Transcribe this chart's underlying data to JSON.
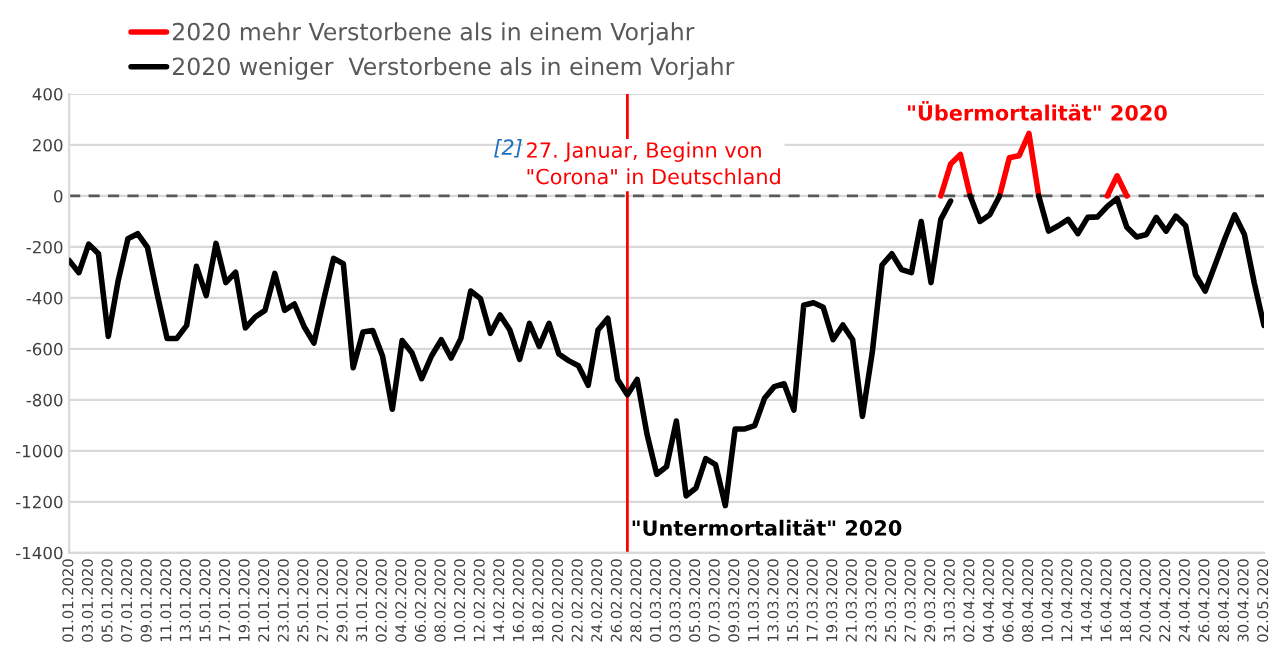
{
  "chart_data": {
    "type": "line",
    "x": [
      "2020-01-01",
      "2020-01-02",
      "2020-01-03",
      "2020-01-04",
      "2020-01-05",
      "2020-01-06",
      "2020-01-07",
      "2020-01-08",
      "2020-01-09",
      "2020-01-10",
      "2020-01-11",
      "2020-01-12",
      "2020-01-13",
      "2020-01-14",
      "2020-01-15",
      "2020-01-16",
      "2020-01-17",
      "2020-01-18",
      "2020-01-19",
      "2020-01-20",
      "2020-01-21",
      "2020-01-22",
      "2020-01-23",
      "2020-01-24",
      "2020-01-25",
      "2020-01-26",
      "2020-01-27",
      "2020-01-28",
      "2020-01-29",
      "2020-01-30",
      "2020-01-31",
      "2020-02-01",
      "2020-02-02",
      "2020-02-03",
      "2020-02-04",
      "2020-02-05",
      "2020-02-06",
      "2020-02-07",
      "2020-02-08",
      "2020-02-09",
      "2020-02-10",
      "2020-02-11",
      "2020-02-12",
      "2020-02-13",
      "2020-02-14",
      "2020-02-15",
      "2020-02-16",
      "2020-02-17",
      "2020-02-18",
      "2020-02-19",
      "2020-02-20",
      "2020-02-21",
      "2020-02-22",
      "2020-02-23",
      "2020-02-24",
      "2020-02-25",
      "2020-02-26",
      "2020-02-27",
      "2020-02-28",
      "2020-02-29",
      "2020-03-01",
      "2020-03-02",
      "2020-03-03",
      "2020-03-04",
      "2020-03-05",
      "2020-03-06",
      "2020-03-07",
      "2020-03-08",
      "2020-03-09",
      "2020-03-10",
      "2020-03-11",
      "2020-03-12",
      "2020-03-13",
      "2020-03-14",
      "2020-03-15",
      "2020-03-16",
      "2020-03-17",
      "2020-03-18",
      "2020-03-19",
      "2020-03-20",
      "2020-03-21",
      "2020-03-22",
      "2020-03-23",
      "2020-03-24",
      "2020-03-25",
      "2020-03-26",
      "2020-03-27",
      "2020-03-28",
      "2020-03-29",
      "2020-03-30",
      "2020-03-31",
      "2020-04-01",
      "2020-04-02",
      "2020-04-03",
      "2020-04-04",
      "2020-04-05",
      "2020-04-06",
      "2020-04-07",
      "2020-04-08",
      "2020-04-09",
      "2020-04-10",
      "2020-04-11",
      "2020-04-12",
      "2020-04-13",
      "2020-04-14",
      "2020-04-15",
      "2020-04-16",
      "2020-04-17",
      "2020-04-18",
      "2020-04-19",
      "2020-04-20",
      "2020-04-21",
      "2020-04-22",
      "2020-04-23",
      "2020-04-24",
      "2020-04-25",
      "2020-04-26",
      "2020-04-27",
      "2020-04-28",
      "2020-04-29",
      "2020-04-30",
      "2020-05-01",
      "2020-05-02"
    ],
    "series": [
      {
        "name": "2020 mehr Verstorbene als in einem Vorjahr",
        "color": "#ff0000",
        "values": [
          null,
          null,
          null,
          null,
          null,
          null,
          null,
          null,
          null,
          null,
          null,
          null,
          null,
          null,
          null,
          null,
          null,
          null,
          null,
          null,
          null,
          null,
          null,
          null,
          null,
          null,
          null,
          null,
          null,
          null,
          null,
          null,
          null,
          null,
          null,
          null,
          null,
          null,
          null,
          null,
          null,
          null,
          null,
          null,
          null,
          null,
          null,
          null,
          null,
          null,
          null,
          null,
          null,
          null,
          null,
          null,
          null,
          null,
          null,
          null,
          null,
          null,
          null,
          null,
          null,
          null,
          null,
          null,
          null,
          null,
          null,
          null,
          null,
          null,
          null,
          null,
          null,
          null,
          null,
          null,
          null,
          null,
          null,
          null,
          null,
          null,
          null,
          null,
          null,
          0,
          125,
          163,
          0,
          null,
          null,
          0,
          150,
          158,
          245,
          0,
          null,
          null,
          null,
          null,
          null,
          null,
          0,
          79,
          0,
          null,
          null,
          null,
          null,
          null,
          null,
          null,
          null,
          null,
          null,
          null,
          null,
          null,
          null
        ]
      },
      {
        "name": "2020 weniger  Verstorbene als in einem Vorjahr",
        "color": "#000000",
        "values": [
          -253,
          -301,
          -189,
          -227,
          -551,
          -334,
          -168,
          -148,
          -202,
          -386,
          -559,
          -559,
          -508,
          -276,
          -391,
          -186,
          -340,
          -299,
          -518,
          -475,
          -449,
          -304,
          -449,
          -424,
          -513,
          -577,
          -406,
          -245,
          -266,
          -674,
          -534,
          -528,
          -628,
          -837,
          -567,
          -615,
          -717,
          -628,
          -564,
          -636,
          -559,
          -373,
          -403,
          -539,
          -467,
          -526,
          -641,
          -500,
          -590,
          -500,
          -620,
          -646,
          -666,
          -743,
          -526,
          -480,
          -720,
          -780,
          -720,
          -934,
          -1092,
          -1062,
          -883,
          -1177,
          -1146,
          -1031,
          -1054,
          -1215,
          -914,
          -914,
          -901,
          -794,
          -748,
          -737,
          -840,
          -429,
          -419,
          -437,
          -564,
          -506,
          -564,
          -865,
          -615,
          -271,
          -227,
          -289,
          -301,
          -100,
          -340,
          -92,
          -20,
          null,
          0,
          -100,
          -74,
          0,
          null,
          null,
          null,
          0,
          -138,
          -117,
          -92,
          -148,
          -84,
          -82,
          -41,
          -10,
          -123,
          -161,
          -151,
          -84,
          -138,
          -79,
          -117,
          -309,
          -373,
          -271,
          -168,
          -74,
          -151,
          -340,
          -508
        ]
      }
    ],
    "xlim": [
      "2020-01-01",
      "2020-05-02"
    ],
    "xticks": [
      {
        "value": "2020-01-01",
        "label": "01.01.2020"
      },
      {
        "value": "2020-01-03",
        "label": "03.01.2020"
      },
      {
        "value": "2020-01-05",
        "label": "05.01.2020"
      },
      {
        "value": "2020-01-07",
        "label": "07.01.2020"
      },
      {
        "value": "2020-01-09",
        "label": "09.01.2020"
      },
      {
        "value": "2020-01-11",
        "label": "11.01.2020"
      },
      {
        "value": "2020-01-13",
        "label": "13.01.2020"
      },
      {
        "value": "2020-01-15",
        "label": "15.01.2020"
      },
      {
        "value": "2020-01-17",
        "label": "17.01.2020"
      },
      {
        "value": "2020-01-19",
        "label": "19.01.2020"
      },
      {
        "value": "2020-01-21",
        "label": "21.01.2020"
      },
      {
        "value": "2020-01-23",
        "label": "23.01.2020"
      },
      {
        "value": "2020-01-25",
        "label": "25.01.2020"
      },
      {
        "value": "2020-01-27",
        "label": "27.01.2020"
      },
      {
        "value": "2020-01-29",
        "label": "29.01.2020"
      },
      {
        "value": "2020-01-31",
        "label": "31.01.2020"
      },
      {
        "value": "2020-02-02",
        "label": "02.02.2020"
      },
      {
        "value": "2020-02-04",
        "label": "04.02.2020"
      },
      {
        "value": "2020-02-06",
        "label": "06.02.2020"
      },
      {
        "value": "2020-02-08",
        "label": "08.02.2020"
      },
      {
        "value": "2020-02-10",
        "label": "10.02.2020"
      },
      {
        "value": "2020-02-12",
        "label": "12.02.2020"
      },
      {
        "value": "2020-02-14",
        "label": "14.02.2020"
      },
      {
        "value": "2020-02-16",
        "label": "16.02.2020"
      },
      {
        "value": "2020-02-18",
        "label": "18.02.2020"
      },
      {
        "value": "2020-02-20",
        "label": "20.02.2020"
      },
      {
        "value": "2020-02-22",
        "label": "22.02.2020"
      },
      {
        "value": "2020-02-24",
        "label": "24.02.2020"
      },
      {
        "value": "2020-02-26",
        "label": "26.02.2020"
      },
      {
        "value": "2020-02-28",
        "label": "28.02.2020"
      },
      {
        "value": "2020-03-01",
        "label": "01.03.2020"
      },
      {
        "value": "2020-03-03",
        "label": "03.03.2020"
      },
      {
        "value": "2020-03-05",
        "label": "05.03.2020"
      },
      {
        "value": "2020-03-07",
        "label": "07.03.2020"
      },
      {
        "value": "2020-03-09",
        "label": "09.03.2020"
      },
      {
        "value": "2020-03-11",
        "label": "11.03.2020"
      },
      {
        "value": "2020-03-13",
        "label": "13.03.2020"
      },
      {
        "value": "2020-03-15",
        "label": "15.03.2020"
      },
      {
        "value": "2020-03-17",
        "label": "17.03.2020"
      },
      {
        "value": "2020-03-19",
        "label": "19.03.2020"
      },
      {
        "value": "2020-03-21",
        "label": "21.03.2020"
      },
      {
        "value": "2020-03-23",
        "label": "23.03.2020"
      },
      {
        "value": "2020-03-25",
        "label": "25.03.2020"
      },
      {
        "value": "2020-03-27",
        "label": "27.03.2020"
      },
      {
        "value": "2020-03-29",
        "label": "29.03.2020"
      },
      {
        "value": "2020-03-31",
        "label": "31.03.2020"
      },
      {
        "value": "2020-04-02",
        "label": "02.04.2020"
      },
      {
        "value": "2020-04-04",
        "label": "04.04.2020"
      },
      {
        "value": "2020-04-06",
        "label": "06.04.2020"
      },
      {
        "value": "2020-04-08",
        "label": "08.04.2020"
      },
      {
        "value": "2020-04-10",
        "label": "10.04.2020"
      },
      {
        "value": "2020-04-12",
        "label": "12.04.2020"
      },
      {
        "value": "2020-04-14",
        "label": "14.04.2020"
      },
      {
        "value": "2020-04-16",
        "label": "16.04.2020"
      },
      {
        "value": "2020-04-18",
        "label": "18.04.2020"
      },
      {
        "value": "2020-04-20",
        "label": "20.04.2020"
      },
      {
        "value": "2020-04-22",
        "label": "22.04.2020"
      },
      {
        "value": "2020-04-24",
        "label": "24.04.2020"
      },
      {
        "value": "2020-04-26",
        "label": "26.04.2020"
      },
      {
        "value": "2020-04-28",
        "label": "28.04.2020"
      },
      {
        "value": "2020-04-30",
        "label": "30.04.2020"
      },
      {
        "value": "2020-05-02",
        "label": "02.05.2020"
      }
    ],
    "ylim": [
      -1400,
      400
    ],
    "yticks": [
      -1400,
      -1200,
      -1000,
      -800,
      -600,
      -400,
      -200,
      0,
      200,
      400
    ],
    "ref_lines": [
      {
        "axis": "y",
        "value": 0,
        "color": "#595959",
        "line_style": "dashed"
      },
      {
        "axis": "x",
        "value": "2020-02-27",
        "color": "#ff0000",
        "line_style": "solid"
      }
    ],
    "annotations": [
      "[2]",
      "27. Januar, Beginn von\n\"Corona\" in Deutschland",
      "\"Übermortalität\" 2020",
      "\"Untermortalität\" 2020"
    ],
    "grid": "y",
    "legend": "top left",
    "marker": "none",
    "line_style": "solid"
  }
}
